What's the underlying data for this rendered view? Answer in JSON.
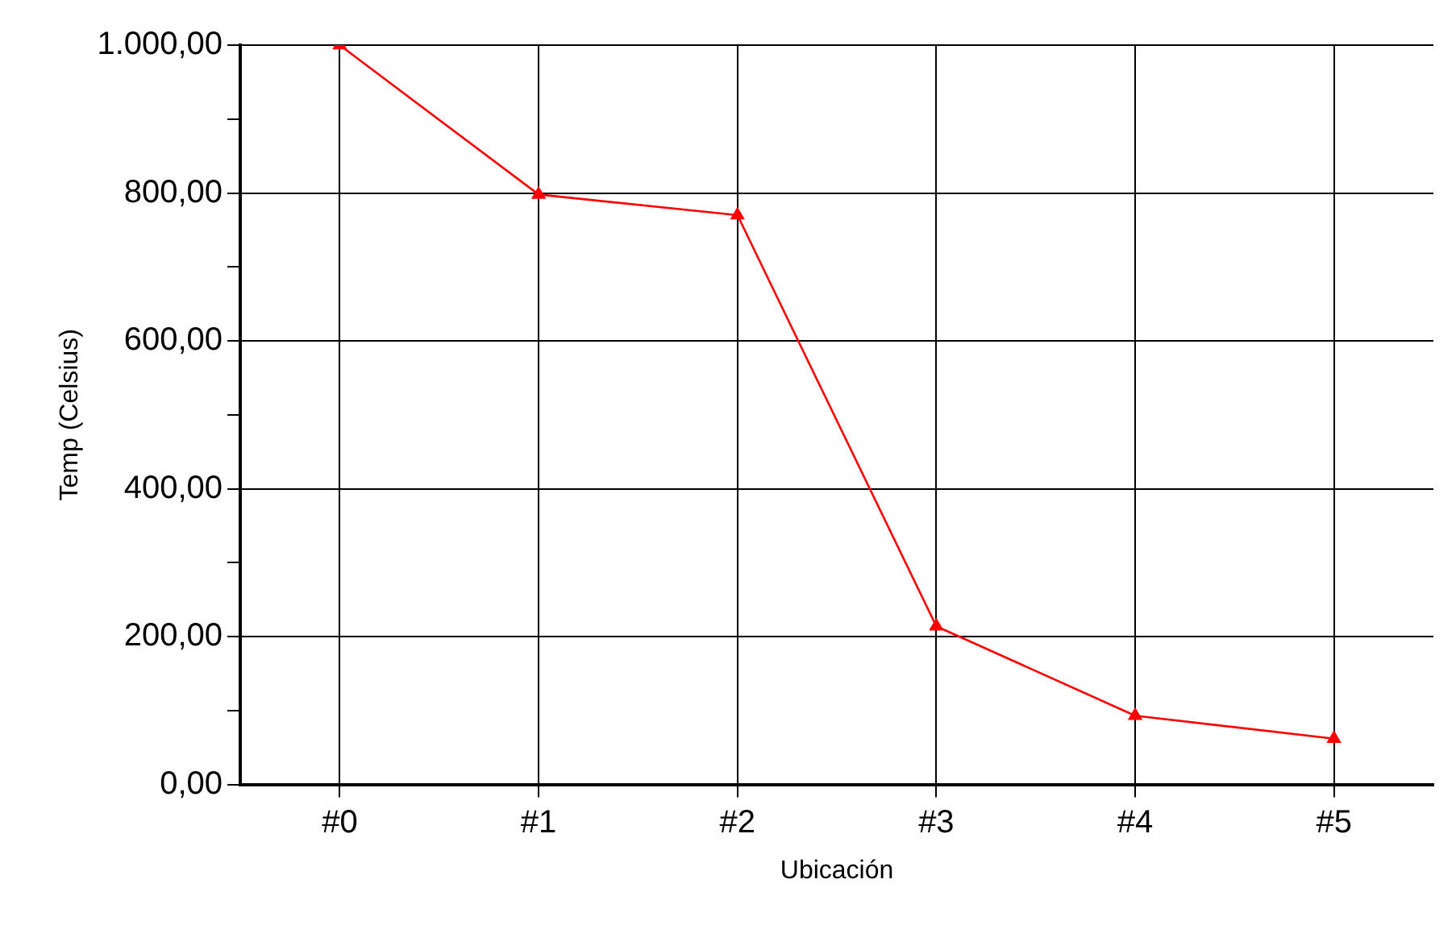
{
  "chart_data": {
    "type": "line",
    "xlabel": "Ubicación",
    "ylabel": "Temp (Celsius)",
    "categories": [
      "#0",
      "#1",
      "#2",
      "#3",
      "#4",
      "#5"
    ],
    "series": [
      {
        "color": "#ff0000",
        "values": [
          1000,
          798,
          770,
          214,
          93,
          62
        ]
      }
    ],
    "ylim": [
      0,
      1000
    ],
    "yticks": [
      {
        "value": 0,
        "label": "0,00"
      },
      {
        "value": 100,
        "label": null
      },
      {
        "value": 200,
        "label": "200,00"
      },
      {
        "value": 300,
        "label": null
      },
      {
        "value": 400,
        "label": "400,00"
      },
      {
        "value": 500,
        "label": null
      },
      {
        "value": 600,
        "label": "600,00"
      },
      {
        "value": 700,
        "label": null
      },
      {
        "value": 800,
        "label": "800,00"
      },
      {
        "value": 900,
        "label": null
      },
      {
        "value": 1000,
        "label": "1.000,00"
      }
    ],
    "grid": true,
    "legend": false,
    "marker": "triangle",
    "line_style": "solid"
  }
}
